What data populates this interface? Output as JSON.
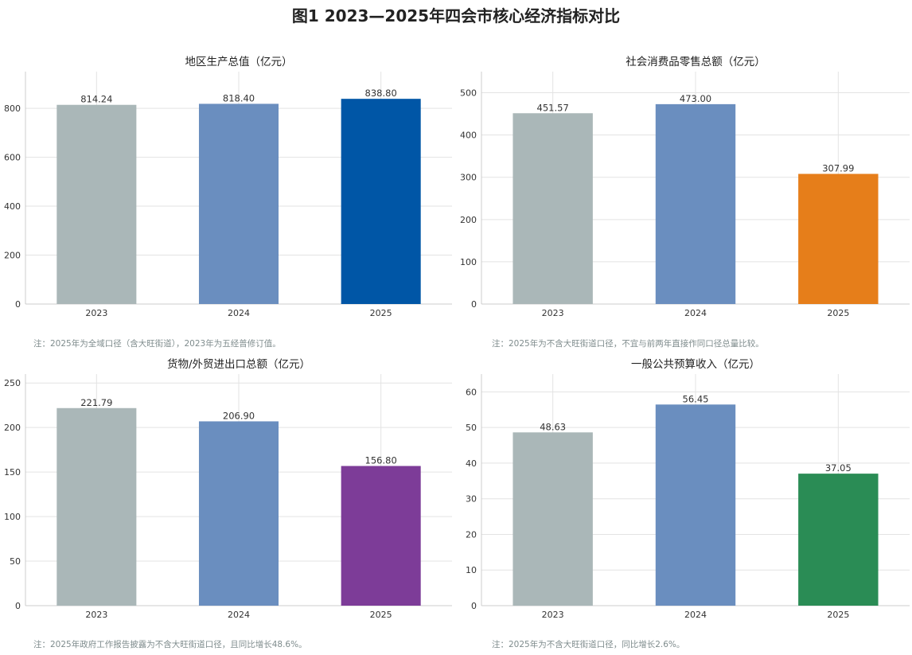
{
  "title": "图1 2023—2025年四会市核心经济指标对比",
  "chart_data": [
    {
      "type": "bar",
      "title": "地区生产总值（亿元）",
      "categories": [
        "2023",
        "2024",
        "2025"
      ],
      "values": [
        814.24,
        818.4,
        838.8
      ],
      "value_labels": [
        "814.24",
        "818.40",
        "838.80"
      ],
      "colors": [
        "#aab7b8",
        "#6a8ebf",
        "#0056a6"
      ],
      "ylim": [
        0,
        950
      ],
      "yticks": [
        0,
        200,
        400,
        600,
        800
      ],
      "note": "注：2025年为全域口径（含大旺街道），2023年为五经普修订值。"
    },
    {
      "type": "bar",
      "title": "社会消费品零售总额（亿元）",
      "categories": [
        "2023",
        "2024",
        "2025"
      ],
      "values": [
        451.57,
        473.0,
        307.99
      ],
      "value_labels": [
        "451.57",
        "473.00",
        "307.99"
      ],
      "colors": [
        "#aab7b8",
        "#6a8ebf",
        "#e67e1a"
      ],
      "ylim": [
        0,
        550
      ],
      "yticks": [
        0,
        100,
        200,
        300,
        400,
        500
      ],
      "note": "注：2025年为不含大旺街道口径，不宜与前两年直接作同口径总量比较。"
    },
    {
      "type": "bar",
      "title": "货物/外贸进出口总额（亿元）",
      "categories": [
        "2023",
        "2024",
        "2025"
      ],
      "values": [
        221.79,
        206.9,
        156.8
      ],
      "value_labels": [
        "221.79",
        "206.90",
        "156.80"
      ],
      "colors": [
        "#aab7b8",
        "#6a8ebf",
        "#7d3c98"
      ],
      "ylim": [
        0,
        260
      ],
      "yticks": [
        0,
        50,
        100,
        150,
        200,
        250
      ],
      "note": "注：2025年政府工作报告披露为不含大旺街道口径，且同比增长48.6%。"
    },
    {
      "type": "bar",
      "title": "一般公共预算收入（亿元）",
      "categories": [
        "2023",
        "2024",
        "2025"
      ],
      "values": [
        48.63,
        56.45,
        37.05
      ],
      "value_labels": [
        "48.63",
        "56.45",
        "37.05"
      ],
      "colors": [
        "#aab7b8",
        "#6a8ebf",
        "#2a8c55"
      ],
      "ylim": [
        0,
        65
      ],
      "yticks": [
        0,
        10,
        20,
        30,
        40,
        50,
        60
      ],
      "note": "注：2025年为不含大旺街道口径，同比增长2.6%。"
    }
  ]
}
